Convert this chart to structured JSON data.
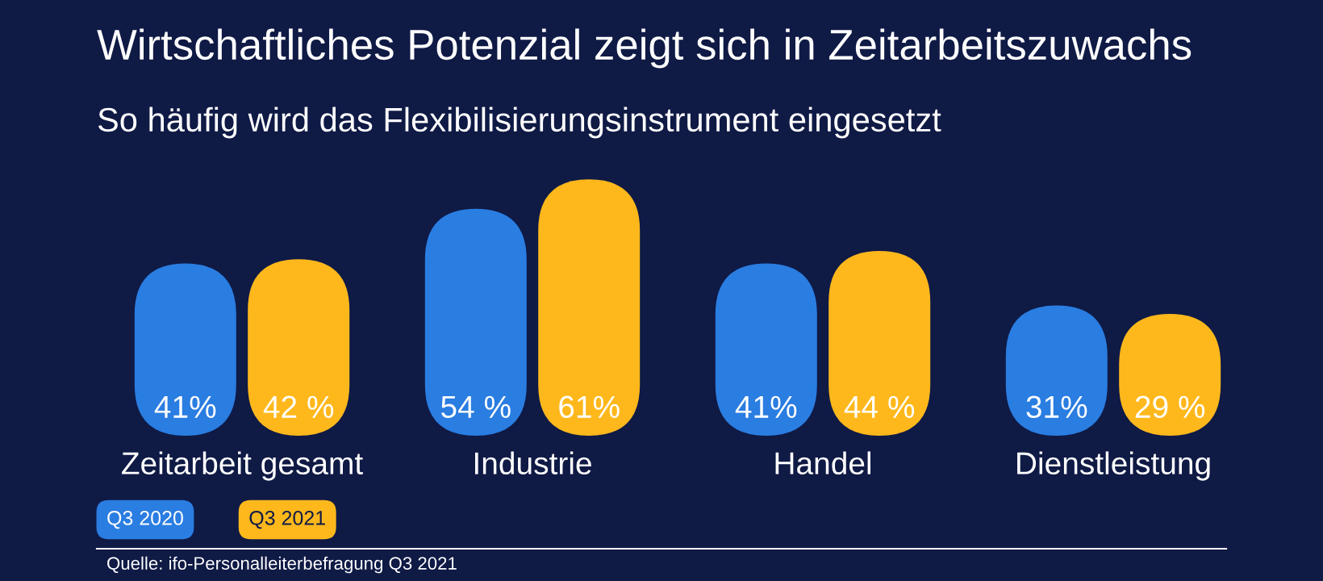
{
  "chart_data": {
    "type": "bar",
    "title": "Wirtschaftliches Potenzial zeigt sich in Zeitarbeitszuwachs",
    "subtitle": "So häufig wird das Flexibilisierungsinstrument eingesetzt",
    "categories": [
      "Zeitarbeit gesamt",
      "Industrie",
      "Handel",
      "Dienstleistung"
    ],
    "series": [
      {
        "name": "Q3 2020",
        "color": "#2a7de1",
        "values": [
          41,
          54,
          41,
          31
        ],
        "value_labels": [
          "41%",
          "54 %",
          "41%",
          "31%"
        ]
      },
      {
        "name": "Q3 2021",
        "color": "#ffb81c",
        "values": [
          42,
          61,
          44,
          29
        ],
        "value_labels": [
          "42 %",
          "61%",
          "44 %",
          "29 %"
        ]
      }
    ],
    "legend": "bottom left",
    "annotations": [
      "Quelle: ifo-Personalleiterbefragung Q3 2021"
    ]
  }
}
